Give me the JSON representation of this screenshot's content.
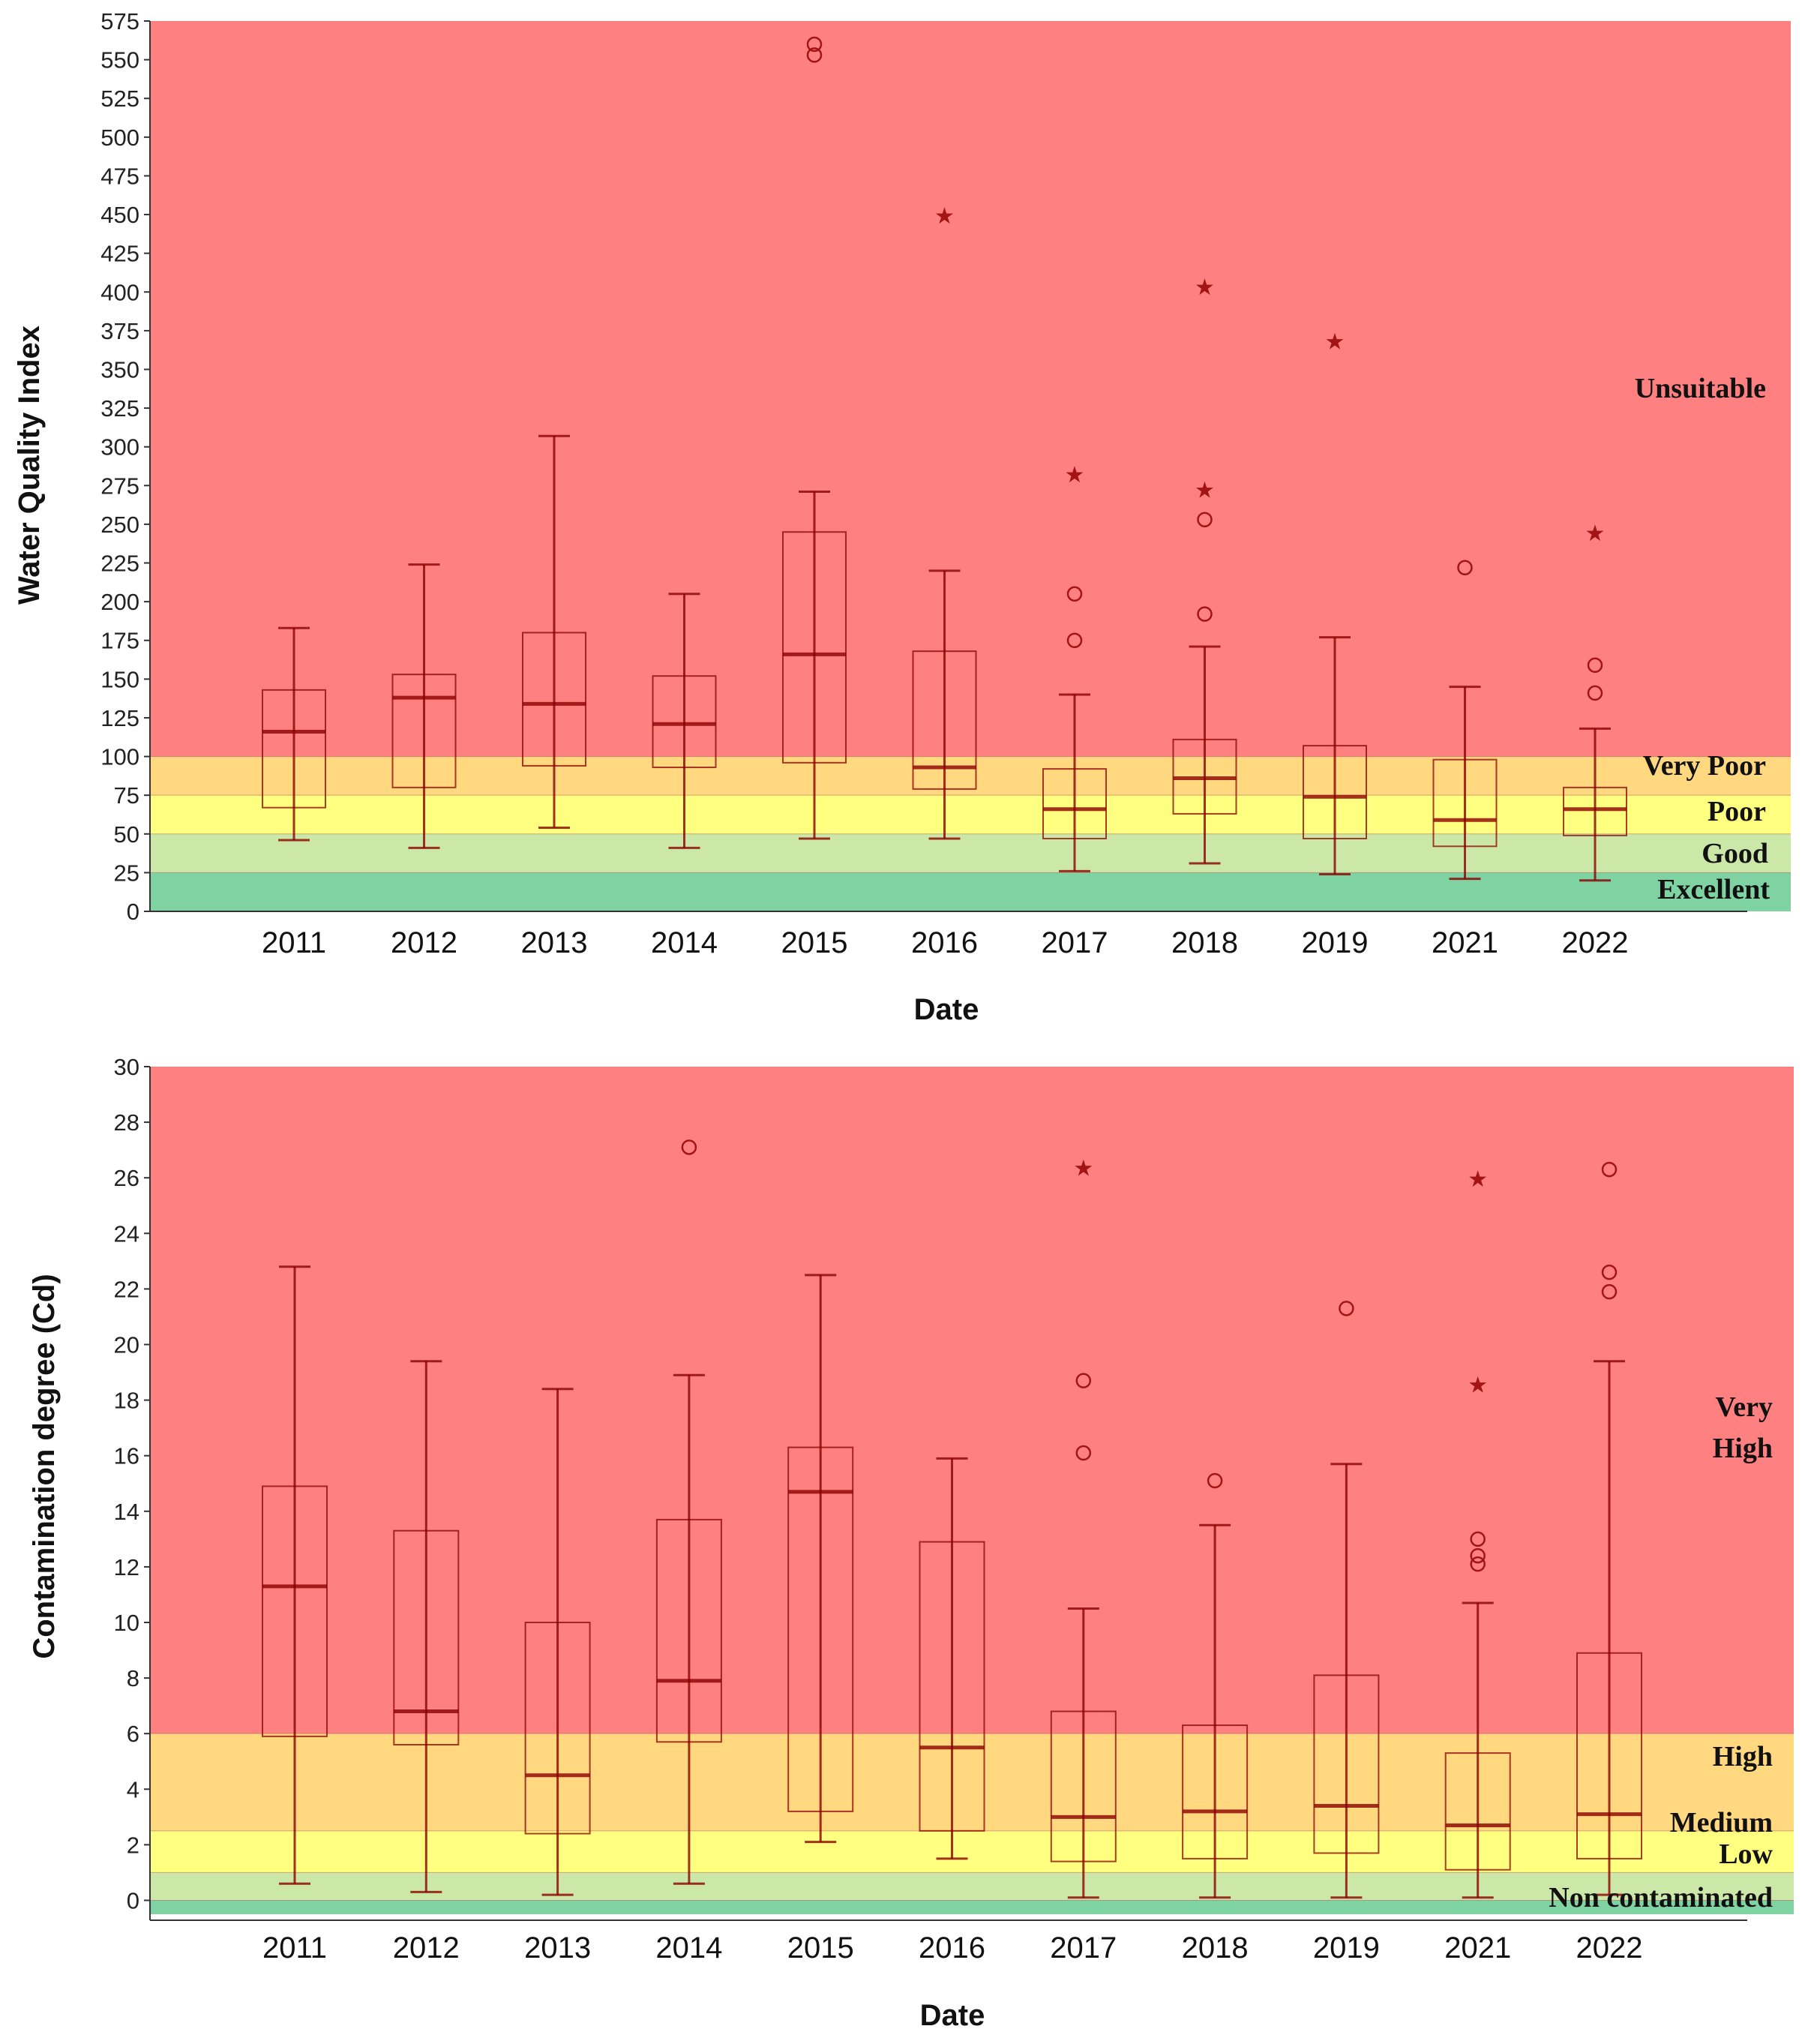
{
  "chart_data": [
    {
      "type": "box",
      "ylabel": "Water Quality Index",
      "xlabel": "Date",
      "ylim": [
        0,
        575
      ],
      "yticks": [
        0,
        25,
        50,
        75,
        100,
        125,
        150,
        175,
        200,
        225,
        250,
        275,
        300,
        325,
        350,
        375,
        400,
        425,
        450,
        475,
        500,
        525,
        550,
        575
      ],
      "categories": [
        "2011",
        "2012",
        "2013",
        "2014",
        "2015",
        "2016",
        "2017",
        "2018",
        "2019",
        "2021",
        "2022"
      ],
      "zones": [
        {
          "label": "Excellent",
          "from": 0,
          "to": 25,
          "color": "#7fd3a3"
        },
        {
          "label": "Good",
          "from": 25,
          "to": 50,
          "color": "#cce8a8"
        },
        {
          "label": "Poor",
          "from": 50,
          "to": 75,
          "color": "#ffff80"
        },
        {
          "label": "Very Poor",
          "from": 75,
          "to": 100,
          "color": "#ffd880"
        },
        {
          "label": "Unsuitable",
          "from": 100,
          "to": 575,
          "color": "#ff8080"
        }
      ],
      "boxes": [
        {
          "min": 46,
          "q1": 67,
          "median": 116,
          "q3": 143,
          "max": 183,
          "outliers": [],
          "extremes": []
        },
        {
          "min": 41,
          "q1": 80,
          "median": 138,
          "q3": 153,
          "max": 224,
          "outliers": [],
          "extremes": []
        },
        {
          "min": 54,
          "q1": 94,
          "median": 134,
          "q3": 180,
          "max": 307,
          "outliers": [],
          "extremes": []
        },
        {
          "min": 41,
          "q1": 93,
          "median": 121,
          "q3": 152,
          "max": 205,
          "outliers": [],
          "extremes": []
        },
        {
          "min": 47,
          "q1": 96,
          "median": 166,
          "q3": 245,
          "max": 271,
          "outliers": [
            553,
            560
          ],
          "extremes": []
        },
        {
          "min": 47,
          "q1": 79,
          "median": 93,
          "q3": 168,
          "max": 220,
          "outliers": [],
          "extremes": [
            450
          ]
        },
        {
          "min": 26,
          "q1": 47,
          "median": 66,
          "q3": 92,
          "max": 140,
          "outliers": [
            175,
            205
          ],
          "extremes": [
            283
          ]
        },
        {
          "min": 31,
          "q1": 63,
          "median": 86,
          "q3": 111,
          "max": 171,
          "outliers": [
            192,
            253
          ],
          "extremes": [
            273,
            404
          ]
        },
        {
          "min": 24,
          "q1": 47,
          "median": 74,
          "q3": 107,
          "max": 177,
          "outliers": [],
          "extremes": [
            369
          ]
        },
        {
          "min": 21,
          "q1": 42,
          "median": 59,
          "q3": 98,
          "max": 145,
          "outliers": [
            222
          ],
          "extremes": []
        },
        {
          "min": 20,
          "q1": 49,
          "median": 66,
          "q3": 80,
          "max": 118,
          "outliers": [
            141,
            159
          ],
          "extremes": [
            245
          ]
        }
      ]
    },
    {
      "type": "box",
      "ylabel": "Contamination degree (Cd)",
      "xlabel": "Date",
      "ylim": [
        -0.5,
        30
      ],
      "yticks": [
        0,
        2,
        4,
        6,
        8,
        10,
        12,
        14,
        16,
        18,
        20,
        22,
        24,
        26,
        28,
        30
      ],
      "categories": [
        "2011",
        "2012",
        "2013",
        "2014",
        "2015",
        "2016",
        "2017",
        "2018",
        "2019",
        "2021",
        "2022"
      ],
      "zones": [
        {
          "label": "Non contaminated",
          "from": -0.5,
          "to": 0,
          "color": "#7fd3a3"
        },
        {
          "label": "Low",
          "from": 0,
          "to": 1,
          "color": "#cce8a8"
        },
        {
          "label": "Medium",
          "from": 1,
          "to": 2.5,
          "color": "#ffff80"
        },
        {
          "label": "High",
          "from": 2.5,
          "to": 6,
          "color": "#ffd880"
        },
        {
          "label": "Very High",
          "from": 6,
          "to": 30,
          "color": "#ff8080"
        }
      ],
      "boxes": [
        {
          "min": 0.6,
          "q1": 5.9,
          "median": 11.3,
          "q3": 14.9,
          "max": 22.8,
          "outliers": [],
          "extremes": []
        },
        {
          "min": 0.3,
          "q1": 5.6,
          "median": 6.8,
          "q3": 13.3,
          "max": 19.4,
          "outliers": [],
          "extremes": []
        },
        {
          "min": 0.2,
          "q1": 2.4,
          "median": 4.5,
          "q3": 10.0,
          "max": 18.4,
          "outliers": [],
          "extremes": []
        },
        {
          "min": 0.6,
          "q1": 5.7,
          "median": 7.9,
          "q3": 13.7,
          "max": 18.9,
          "outliers": [
            27.1
          ],
          "extremes": []
        },
        {
          "min": 2.1,
          "q1": 3.2,
          "median": 14.7,
          "q3": 16.3,
          "max": 22.5,
          "outliers": [],
          "extremes": []
        },
        {
          "min": 1.5,
          "q1": 2.5,
          "median": 5.5,
          "q3": 12.9,
          "max": 15.9,
          "outliers": [],
          "extremes": []
        },
        {
          "min": 0.1,
          "q1": 1.4,
          "median": 3.0,
          "q3": 6.8,
          "max": 10.5,
          "outliers": [
            16.1,
            18.7
          ],
          "extremes": [
            26.4
          ]
        },
        {
          "min": 0.1,
          "q1": 1.5,
          "median": 3.2,
          "q3": 6.3,
          "max": 13.5,
          "outliers": [
            15.1
          ],
          "extremes": []
        },
        {
          "min": 0.1,
          "q1": 1.7,
          "median": 3.4,
          "q3": 8.1,
          "max": 15.7,
          "outliers": [
            21.3
          ],
          "extremes": []
        },
        {
          "min": 0.1,
          "q1": 1.1,
          "median": 2.7,
          "q3": 5.3,
          "max": 10.7,
          "outliers": [
            12.1,
            12.4,
            13.0
          ],
          "extremes": [
            18.6,
            26.0
          ]
        },
        {
          "min": 0.2,
          "q1": 1.5,
          "median": 3.1,
          "q3": 8.9,
          "max": 19.4,
          "outliers": [
            21.9,
            22.6,
            26.3
          ],
          "extremes": []
        }
      ]
    }
  ],
  "zone_labels": {
    "top": {
      "unsuitable": "Unsuitable",
      "very_poor": "Very Poor",
      "poor": "Poor",
      "good": "Good",
      "excellent": "Excellent"
    },
    "bottom": {
      "very": "Very",
      "high_top": "High",
      "high": "High",
      "medium": "Medium",
      "low": "Low",
      "non": "Non contaminated"
    }
  },
  "colors": {
    "box_stroke": "#8b0000",
    "whisker_light": "#6b4a00",
    "whisker_green": "#2f5a2a"
  }
}
